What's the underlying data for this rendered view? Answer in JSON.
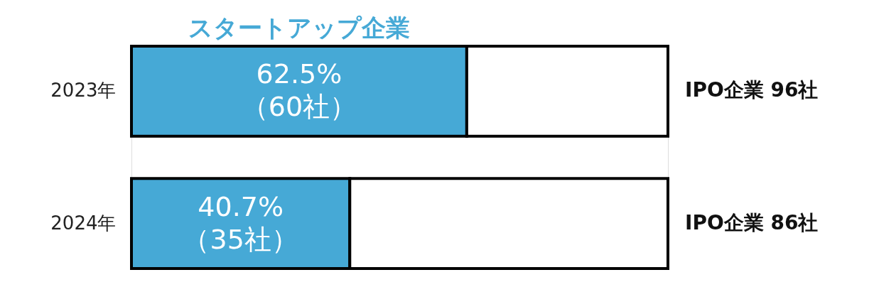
{
  "chart_data": {
    "type": "bar",
    "orientation": "horizontal",
    "stacked": true,
    "categories": [
      "2023年",
      "2024年"
    ],
    "xlim": [
      0,
      100
    ],
    "tick_labels": "y",
    "legend": false,
    "series": [
      {
        "name": "スタートアップ企業",
        "color": "#46a9d6",
        "values": [
          62.5,
          40.7
        ],
        "value_labels": [
          "62.5%\n（60社）",
          "40.7%\n（35社）"
        ]
      },
      {
        "color": "#ffffff",
        "values": [
          37.5,
          59.3
        ]
      }
    ],
    "annotations": [
      "IPO企業 96社",
      "IPO企業 86社"
    ]
  }
}
